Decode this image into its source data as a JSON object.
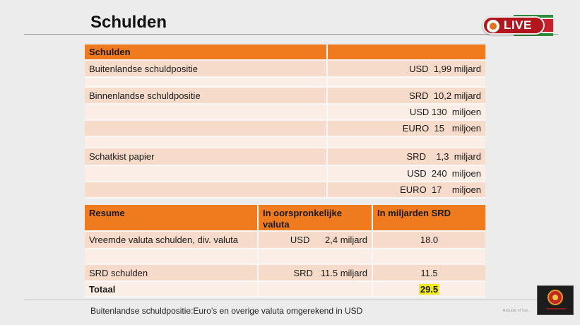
{
  "slide": {
    "title": "Schulden",
    "live_label": "LIVE",
    "footnote": "Buitenlandse schuldpositie:Euro’s en overige valuta omgerekend in USD",
    "republic_text": "Republic of Suri..."
  },
  "table1": {
    "header": [
      "Schulden",
      ""
    ],
    "rows": [
      [
        "Buitenlandse schuldpositie",
        "USD  1,99 miljard"
      ],
      [
        "",
        ""
      ],
      [
        "Binnenlandse schuldpositie",
        "SRD  10,2 miljard"
      ],
      [
        "",
        "USD 130  miljoen"
      ],
      [
        "",
        "EURO  15   miljoen"
      ],
      [
        "",
        ""
      ],
      [
        "Schatkist papier",
        "SRD    1,3  miljard"
      ],
      [
        "",
        "USD  240  miljoen"
      ],
      [
        "",
        "EURO  17    miljoen"
      ]
    ]
  },
  "table2": {
    "header": [
      "Resume",
      "In oorspronkelijke valuta",
      "In miljarden SRD"
    ],
    "rows": [
      [
        "Vreemde valuta schulden, div. valuta",
        "USD      2,4 miljard",
        "18.0"
      ],
      [
        "",
        "",
        ""
      ],
      [
        "SRD schulden",
        "SRD   11.5 miljard",
        "11.5"
      ],
      [
        "Totaal",
        "",
        "29.5"
      ]
    ]
  },
  "colors": {
    "header_orange": "#f07b1e",
    "row_dark": "#f6dbcb",
    "row_light": "#fbeee6",
    "highlight_yellow": "#f2ea1a",
    "live_red": "#b3151d"
  }
}
